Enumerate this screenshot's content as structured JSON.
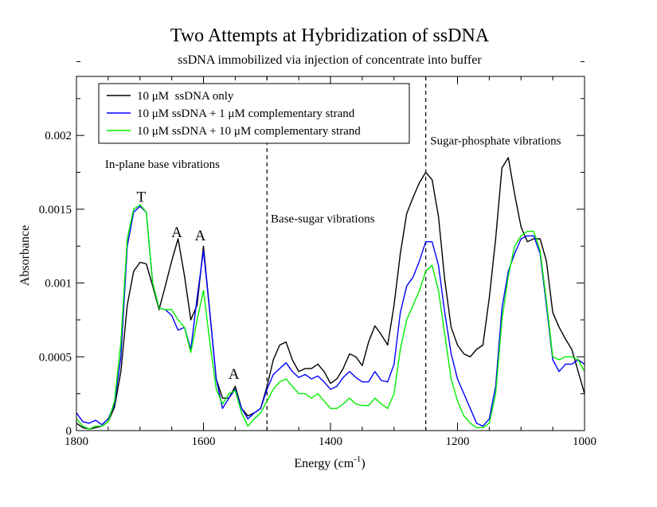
{
  "chart_data": {
    "type": "line",
    "title": "Two Attempts at Hybridization of ssDNA",
    "subtitle": "ssDNA immobilized via injection of concentrate into buffer",
    "xlabel_main": "Energy (cm",
    "xlabel_sup": "-1",
    "xlabel_close": ")",
    "ylabel": "Absorbance",
    "xlim": [
      1800,
      1000
    ],
    "ylim": [
      0,
      0.0024
    ],
    "x_ticks": [
      {
        "value": 1800,
        "label": "1800"
      },
      {
        "value": 1600,
        "label": "1600"
      },
      {
        "value": 1400,
        "label": "1400"
      },
      {
        "value": 1200,
        "label": "1200"
      },
      {
        "value": 1000,
        "label": "1000"
      }
    ],
    "x_minor_step": 50,
    "y_ticks": [
      {
        "value": 0,
        "label": "0"
      },
      {
        "value": 0.0005,
        "label": "0.0005"
      },
      {
        "value": 0.001,
        "label": "0.001"
      },
      {
        "value": 0.0015,
        "label": "0.0015"
      },
      {
        "value": 0.002,
        "label": "0.002"
      }
    ],
    "y_minor_step": 0.00025,
    "grid": false,
    "legend_position": "top-left",
    "vlines": [
      1500,
      1250
    ],
    "annotations": [
      {
        "id": "in-plane",
        "text": "In-plane base vibrations",
        "x": 1755,
        "y": 0.00178,
        "size": 15
      },
      {
        "id": "base-sugar",
        "text": "Base-sugar vibrations",
        "x": 1494,
        "y": 0.00141,
        "size": 15
      },
      {
        "id": "sugar-phosphate",
        "text": "Sugar-phosphate vibrations",
        "x": 1243,
        "y": 0.00194,
        "size": 15
      },
      {
        "id": "peak-T",
        "text": "T",
        "x": 1698,
        "y": 0.00155,
        "size": 19,
        "anchor": "middle"
      },
      {
        "id": "peak-A1",
        "text": "A",
        "x": 1642,
        "y": 0.00131,
        "size": 19,
        "anchor": "middle"
      },
      {
        "id": "peak-A2",
        "text": "A",
        "x": 1605,
        "y": 0.00129,
        "size": 19,
        "anchor": "middle"
      },
      {
        "id": "peak-A3",
        "text": "A",
        "x": 1552,
        "y": 0.00035,
        "size": 19,
        "anchor": "middle"
      }
    ],
    "series": [
      {
        "name": "10 μM  ssDNA only",
        "color": "#000000",
        "x": [
          1800,
          1790,
          1780,
          1770,
          1760,
          1750,
          1740,
          1730,
          1720,
          1710,
          1700,
          1690,
          1680,
          1670,
          1660,
          1650,
          1640,
          1630,
          1620,
          1610,
          1600,
          1590,
          1580,
          1570,
          1560,
          1550,
          1540,
          1530,
          1520,
          1510,
          1500,
          1490,
          1480,
          1470,
          1460,
          1450,
          1440,
          1430,
          1420,
          1410,
          1400,
          1390,
          1380,
          1370,
          1360,
          1350,
          1340,
          1330,
          1320,
          1310,
          1300,
          1290,
          1280,
          1270,
          1260,
          1250,
          1240,
          1230,
          1220,
          1210,
          1200,
          1190,
          1180,
          1170,
          1160,
          1150,
          1140,
          1130,
          1120,
          1110,
          1100,
          1090,
          1080,
          1070,
          1060,
          1050,
          1040,
          1030,
          1020,
          1010,
          1000
        ],
        "y": [
          5e-05,
          2e-05,
          1e-05,
          2e-05,
          3e-05,
          6e-05,
          0.00016,
          0.0004,
          0.00085,
          0.00108,
          0.00114,
          0.00113,
          0.00098,
          0.00082,
          0.00098,
          0.00115,
          0.0013,
          0.00105,
          0.00075,
          0.00085,
          0.00125,
          0.0008,
          0.00035,
          0.00022,
          0.00022,
          0.0003,
          0.00015,
          0.0001,
          0.00012,
          0.00015,
          0.0003,
          0.00048,
          0.00058,
          0.0006,
          0.00048,
          0.0004,
          0.00042,
          0.00042,
          0.00045,
          0.0004,
          0.00032,
          0.00035,
          0.00042,
          0.00052,
          0.0005,
          0.00044,
          0.0006,
          0.00071,
          0.00065,
          0.00058,
          0.00085,
          0.0012,
          0.00147,
          0.00158,
          0.00168,
          0.00175,
          0.0017,
          0.00145,
          0.00102,
          0.0007,
          0.00058,
          0.00052,
          0.0005,
          0.00055,
          0.00058,
          0.0009,
          0.0013,
          0.00178,
          0.00185,
          0.0016,
          0.00138,
          0.00128,
          0.0013,
          0.0013,
          0.00115,
          0.0008,
          0.0007,
          0.00062,
          0.00055,
          0.0004,
          0.00025
        ]
      },
      {
        "name": "10 μM ssDNA + 1 μM complementary strand",
        "color": "#0000ff",
        "x": [
          1800,
          1790,
          1780,
          1770,
          1760,
          1750,
          1740,
          1730,
          1720,
          1710,
          1700,
          1690,
          1680,
          1670,
          1660,
          1650,
          1640,
          1630,
          1620,
          1610,
          1600,
          1590,
          1580,
          1570,
          1560,
          1550,
          1540,
          1530,
          1520,
          1510,
          1500,
          1490,
          1480,
          1470,
          1460,
          1450,
          1440,
          1430,
          1420,
          1410,
          1400,
          1390,
          1380,
          1370,
          1360,
          1350,
          1340,
          1330,
          1320,
          1310,
          1300,
          1290,
          1280,
          1270,
          1260,
          1250,
          1240,
          1230,
          1220,
          1210,
          1200,
          1190,
          1180,
          1170,
          1160,
          1150,
          1140,
          1130,
          1120,
          1110,
          1100,
          1090,
          1080,
          1070,
          1060,
          1050,
          1040,
          1030,
          1020,
          1010,
          1000
        ],
        "y": [
          0.00012,
          6e-05,
          5e-05,
          7e-05,
          4e-05,
          8e-05,
          0.00018,
          0.0005,
          0.00125,
          0.00148,
          0.00152,
          0.00148,
          0.001,
          0.00083,
          0.00082,
          0.00078,
          0.00068,
          0.0007,
          0.00055,
          0.0009,
          0.00122,
          0.0008,
          0.00035,
          0.00015,
          0.00022,
          0.00028,
          0.00015,
          8e-05,
          0.00012,
          0.00015,
          0.00028,
          0.00038,
          0.00042,
          0.00046,
          0.0004,
          0.00036,
          0.00038,
          0.00035,
          0.00037,
          0.00033,
          0.00028,
          0.0003,
          0.00036,
          0.0004,
          0.00036,
          0.00033,
          0.00033,
          0.0004,
          0.00034,
          0.00033,
          0.00045,
          0.0008,
          0.00098,
          0.00104,
          0.00115,
          0.00128,
          0.00128,
          0.00112,
          0.0008,
          0.00052,
          0.00035,
          0.00025,
          0.00015,
          5e-05,
          3e-05,
          8e-05,
          0.0003,
          0.00083,
          0.00108,
          0.0012,
          0.0013,
          0.00132,
          0.00132,
          0.0012,
          0.00085,
          0.00048,
          0.0004,
          0.00045,
          0.00045,
          0.00048,
          0.00045
        ]
      },
      {
        "name": "10 μM ssDNA + 10 μM complementary strand",
        "color": "#00ee00",
        "x": [
          1800,
          1790,
          1780,
          1770,
          1760,
          1750,
          1740,
          1730,
          1720,
          1710,
          1700,
          1690,
          1680,
          1670,
          1660,
          1650,
          1640,
          1630,
          1620,
          1610,
          1600,
          1590,
          1580,
          1570,
          1560,
          1550,
          1540,
          1530,
          1520,
          1510,
          1500,
          1490,
          1480,
          1470,
          1460,
          1450,
          1440,
          1430,
          1420,
          1410,
          1400,
          1390,
          1380,
          1370,
          1360,
          1350,
          1340,
          1330,
          1320,
          1310,
          1300,
          1290,
          1280,
          1270,
          1260,
          1250,
          1240,
          1230,
          1220,
          1210,
          1200,
          1190,
          1180,
          1170,
          1160,
          1150,
          1140,
          1130,
          1120,
          1110,
          1100,
          1090,
          1080,
          1070,
          1060,
          1050,
          1040,
          1030,
          1020,
          1010,
          1000
        ],
        "y": [
          8e-05,
          3e-05,
          1e-05,
          3e-05,
          3e-05,
          6e-05,
          0.0002,
          0.0006,
          0.0013,
          0.0015,
          0.00153,
          0.00148,
          0.001,
          0.00083,
          0.00082,
          0.00082,
          0.00075,
          0.0007,
          0.00053,
          0.00075,
          0.00095,
          0.0006,
          0.00028,
          0.00018,
          0.00025,
          0.00027,
          0.00012,
          3e-05,
          8e-05,
          0.00012,
          0.0002,
          0.00028,
          0.00033,
          0.00035,
          0.0003,
          0.00025,
          0.00025,
          0.00022,
          0.00025,
          0.0002,
          0.00015,
          0.00015,
          0.00018,
          0.00022,
          0.00018,
          0.00017,
          0.00017,
          0.00022,
          0.00018,
          0.00015,
          0.00025,
          0.00055,
          0.00075,
          0.00085,
          0.00095,
          0.00108,
          0.00112,
          0.00095,
          0.00065,
          0.00035,
          0.0002,
          0.0001,
          5e-05,
          2e-05,
          2e-05,
          5e-05,
          0.00025,
          0.00075,
          0.00105,
          0.00125,
          0.00132,
          0.00135,
          0.00135,
          0.00122,
          0.00088,
          0.0005,
          0.00048,
          0.0005,
          0.0005,
          0.00048,
          0.0004
        ]
      }
    ]
  }
}
